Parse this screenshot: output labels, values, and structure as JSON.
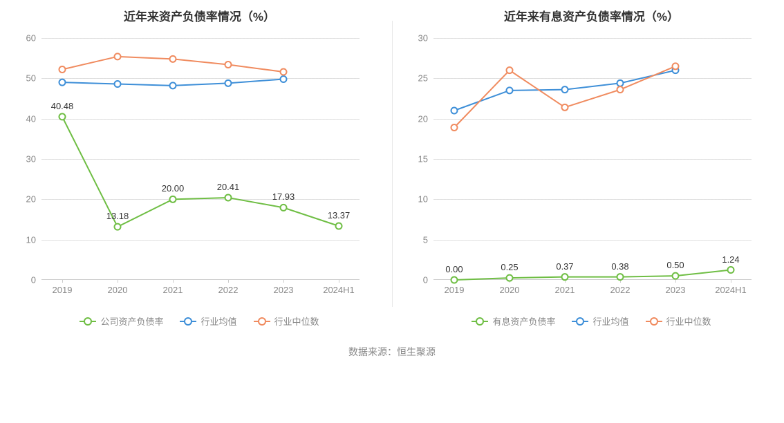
{
  "source_label": "数据来源：恒生聚源",
  "source_fontsize": 14,
  "axis_font_color": "#888888",
  "axis_fontsize": 13,
  "title_fontsize": 17,
  "title_color": "#333333",
  "legend_fontsize": 13,
  "data_label_fontsize": 13,
  "data_label_color": "#333333",
  "grid_color": "#dddddd",
  "background_color": "#ffffff",
  "colors": {
    "company": "#6fbe44",
    "industry_avg": "#3e8fd8",
    "industry_median": "#f08b5f"
  },
  "line_width": 2,
  "marker_radius": 4.5,
  "marker_fill": "#ffffff",
  "marker_stroke_width": 2,
  "chart_left": {
    "type": "line",
    "title": "近年来资产负债率情况（%）",
    "categories": [
      "2019",
      "2020",
      "2021",
      "2022",
      "2023",
      "2024H1"
    ],
    "ylim": [
      0,
      60
    ],
    "ytick_step": 10,
    "yticks": [
      0,
      10,
      20,
      30,
      40,
      50,
      60
    ],
    "series": [
      {
        "key": "company",
        "name": "公司资产负债率",
        "color": "#6fbe44",
        "values": [
          40.48,
          13.18,
          20.0,
          20.41,
          17.93,
          13.37
        ],
        "show_labels": true,
        "labels": [
          "40.48",
          "13.18",
          "20.00",
          "20.41",
          "17.93",
          "13.37"
        ]
      },
      {
        "key": "industry_avg",
        "name": "行业均值",
        "color": "#3e8fd8",
        "values": [
          49.0,
          48.6,
          48.2,
          48.8,
          49.8
        ],
        "show_labels": false
      },
      {
        "key": "industry_median",
        "name": "行业中位数",
        "color": "#f08b5f",
        "values": [
          52.2,
          55.4,
          54.8,
          53.4,
          51.6
        ],
        "show_labels": false
      }
    ]
  },
  "chart_right": {
    "type": "line",
    "title": "近年来有息资产负债率情况（%）",
    "categories": [
      "2019",
      "2020",
      "2021",
      "2022",
      "2023",
      "2024H1"
    ],
    "ylim": [
      0,
      30
    ],
    "ytick_step": 5,
    "yticks": [
      0,
      5,
      10,
      15,
      20,
      25,
      30
    ],
    "series": [
      {
        "key": "company",
        "name": "有息资产负债率",
        "color": "#6fbe44",
        "values": [
          0.0,
          0.25,
          0.37,
          0.38,
          0.5,
          1.24
        ],
        "show_labels": true,
        "labels": [
          "0.00",
          "0.25",
          "0.37",
          "0.38",
          "0.50",
          "1.24"
        ]
      },
      {
        "key": "industry_avg",
        "name": "行业均值",
        "color": "#3e8fd8",
        "values": [
          21.0,
          23.5,
          23.6,
          24.4,
          26.0
        ],
        "show_labels": false
      },
      {
        "key": "industry_median",
        "name": "行业中位数",
        "color": "#f08b5f",
        "values": [
          18.9,
          26.0,
          21.4,
          23.6,
          26.5
        ],
        "show_labels": false
      }
    ]
  }
}
